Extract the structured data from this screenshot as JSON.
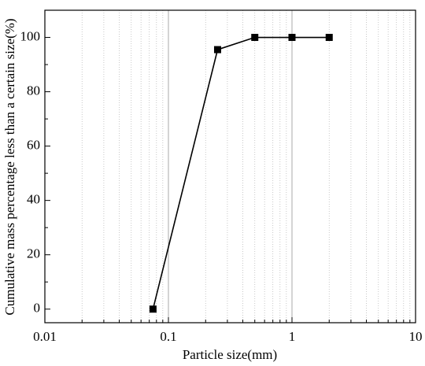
{
  "chart_data": {
    "type": "line",
    "x_label": "Particle size(mm)",
    "y_label": "Cumulative mass percentage less than a certain size(%)",
    "x": [
      0.075,
      0.25,
      0.5,
      1,
      2
    ],
    "series": [
      {
        "name": "Cumulative mass percentage",
        "color": "#000000",
        "values": [
          0,
          95.5,
          100,
          100,
          100
        ]
      }
    ],
    "xscale": "log",
    "xlim": [
      0.01,
      10
    ],
    "xticks": [
      0.01,
      0.1,
      1,
      10
    ],
    "ylim": [
      -5,
      110
    ],
    "yticks": [
      0,
      20,
      40,
      60,
      80,
      100
    ],
    "grid": "x",
    "minor_grid": true,
    "legend": false
  }
}
